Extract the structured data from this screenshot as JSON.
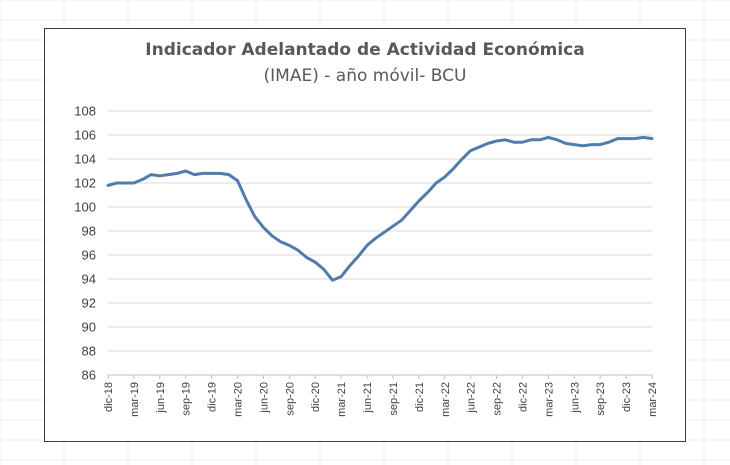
{
  "chart_data": {
    "type": "line",
    "title": "Indicador Adelantado de Actividad Económica",
    "subtitle": "(IMAE) - año móvil- BCU",
    "xlabel": "",
    "ylabel": "",
    "ylim": [
      86,
      108
    ],
    "yticks": [
      86,
      88,
      90,
      92,
      94,
      96,
      98,
      100,
      102,
      104,
      106,
      108
    ],
    "grid": "horizontal",
    "legend": "none",
    "line_color": "#4f7cac",
    "xtick_labels": [
      "dic-18",
      "mar-19",
      "jun-19",
      "sep-19",
      "dic-19",
      "mar-20",
      "jun-20",
      "sep-20",
      "dic-20",
      "mar-21",
      "jun-21",
      "sep-21",
      "dic-21",
      "mar-22",
      "jun-22",
      "sep-22",
      "dic-22",
      "mar-23",
      "jun-23",
      "sep-23",
      "dic-23",
      "mar-24"
    ],
    "x": [
      "dic-18",
      "ene-19",
      "feb-19",
      "mar-19",
      "abr-19",
      "may-19",
      "jun-19",
      "jul-19",
      "ago-19",
      "sep-19",
      "oct-19",
      "nov-19",
      "dic-19",
      "ene-20",
      "feb-20",
      "mar-20",
      "abr-20",
      "may-20",
      "jun-20",
      "jul-20",
      "ago-20",
      "sep-20",
      "oct-20",
      "nov-20",
      "dic-20",
      "ene-21",
      "feb-21",
      "mar-21",
      "abr-21",
      "may-21",
      "jun-21",
      "jul-21",
      "ago-21",
      "sep-21",
      "oct-21",
      "nov-21",
      "dic-21",
      "ene-22",
      "feb-22",
      "mar-22",
      "abr-22",
      "may-22",
      "jun-22",
      "jul-22",
      "ago-22",
      "sep-22",
      "oct-22",
      "nov-22",
      "dic-22",
      "ene-23",
      "feb-23",
      "mar-23",
      "abr-23",
      "may-23",
      "jun-23",
      "jul-23",
      "ago-23",
      "sep-23",
      "oct-23",
      "nov-23",
      "dic-23",
      "ene-24",
      "feb-24",
      "mar-24"
    ],
    "values": [
      101.8,
      102.0,
      102.0,
      102.0,
      102.3,
      102.7,
      102.6,
      102.7,
      102.8,
      103.0,
      102.7,
      102.8,
      102.8,
      102.8,
      102.7,
      102.2,
      100.6,
      99.2,
      98.3,
      97.6,
      97.1,
      96.8,
      96.4,
      95.8,
      95.4,
      94.8,
      93.9,
      94.2,
      95.1,
      95.9,
      96.8,
      97.4,
      97.9,
      98.4,
      98.9,
      99.7,
      100.5,
      101.2,
      102.0,
      102.5,
      103.2,
      104.0,
      104.7,
      105.0,
      105.3,
      105.5,
      105.6,
      105.4,
      105.4,
      105.6,
      105.6,
      105.8,
      105.6,
      105.3,
      105.2,
      105.1,
      105.2,
      105.2,
      105.4,
      105.7,
      105.7,
      105.7,
      105.8,
      105.7
    ]
  }
}
